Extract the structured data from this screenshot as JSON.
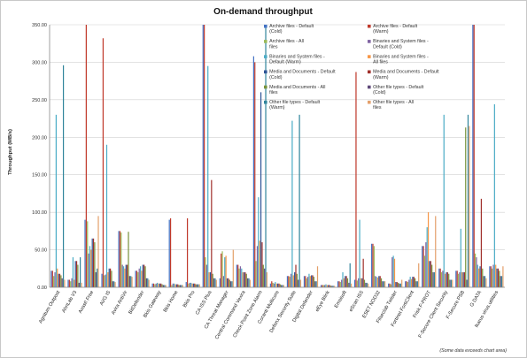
{
  "chart_data": {
    "type": "bar",
    "title": "On-demand throughput",
    "ylabel": "Throughput (MB/s)",
    "xlabel": "",
    "ylim": [
      0,
      350
    ],
    "yticks": [
      "0.00",
      "50.00",
      "100.00",
      "150.00",
      "200.00",
      "250.00",
      "300.00",
      "350.00"
    ],
    "ytick_values": [
      0,
      50,
      100,
      150,
      200,
      250,
      300,
      350
    ],
    "grid": true,
    "legend_placement": "top-right",
    "note": "(Some data exceeds chart area)",
    "categories": [
      "Agnitum Outpost",
      "AhnLab V3",
      "Avast! Free",
      "AVG IS",
      "Avira AntiVir",
      "BitDefender",
      "Bkis Gateway",
      "Bkis Home",
      "Bkis Pro",
      "CA ISS Plus",
      "CA Threat Manager",
      "Central Command Vexira",
      "Check Point Zone Alarm",
      "Coranti Multicore",
      "Defenx Security Suite",
      "Digital Defender",
      "eEye Blink",
      "Emsisoft",
      "eScan ISS",
      "ESET NOD32",
      "Filseclab Twister",
      "Fortinet FortiClient",
      "Frisk F-PROT",
      "F-Secure Client Security",
      "F-Secure PSB",
      "G DATA",
      "Ikarus virus.utilities"
    ],
    "series": [
      {
        "name": "Archive files - Default (Cold)",
        "color": "#4472c4",
        "values": [
          22,
          10,
          90,
          18,
          75,
          22,
          5,
          90,
          7,
          350,
          12,
          30,
          308,
          5,
          15,
          15,
          3,
          8,
          10,
          58,
          5,
          8,
          55,
          25,
          22,
          350,
          28
        ]
      },
      {
        "name": "Archive files - Default (Warm)",
        "color": "#c0392b",
        "values": [
          22,
          10,
          350,
          332,
          75,
          22,
          5,
          92,
          92,
          350,
          45,
          30,
          300,
          8,
          15,
          15,
          3,
          8,
          287,
          58,
          5,
          8,
          55,
          25,
          22,
          350,
          28
        ]
      },
      {
        "name": "Archive files - All files",
        "color": "#9bbb59",
        "values": [
          15,
          8,
          88,
          16,
          73,
          20,
          4,
          3,
          5,
          40,
          48,
          25,
          35,
          6,
          14,
          12,
          3,
          7,
          9,
          55,
          4,
          7,
          42,
          20,
          18,
          45,
          25
        ]
      },
      {
        "name": "Binaries and System files - Default (Cold)",
        "color": "#8064a2",
        "values": [
          20,
          12,
          45,
          17,
          30,
          25,
          5,
          5,
          6,
          30,
          15,
          28,
          55,
          5,
          18,
          14,
          3,
          10,
          12,
          15,
          40,
          10,
          60,
          22,
          20,
          40,
          30
        ]
      },
      {
        "name": "Binaries and System files - Default (Warm)",
        "color": "#4bacc6",
        "values": [
          230,
          40,
          55,
          190,
          28,
          28,
          6,
          5,
          6,
          295,
          40,
          25,
          120,
          7,
          222,
          18,
          4,
          20,
          90,
          14,
          42,
          14,
          80,
          230,
          78,
          30,
          244
        ]
      },
      {
        "name": "Binaries and System files - All files",
        "color": "#f79646",
        "values": [
          25,
          10,
          50,
          20,
          25,
          22,
          5,
          4,
          5,
          20,
          42,
          20,
          62,
          5,
          16,
          15,
          3,
          12,
          12,
          13,
          38,
          11,
          100,
          18,
          20,
          25,
          30
        ]
      },
      {
        "name": "Media and Documents - Default (Cold)",
        "color": "#2f5597",
        "values": [
          18,
          35,
          65,
          25,
          30,
          30,
          5,
          4,
          5,
          20,
          12,
          20,
          260,
          5,
          20,
          16,
          3,
          15,
          12,
          15,
          7,
          14,
          35,
          20,
          20,
          28,
          25
        ]
      },
      {
        "name": "Media and Documents - Default (Warm)",
        "color": "#a0302b",
        "values": [
          18,
          35,
          65,
          25,
          30,
          30,
          5,
          4,
          5,
          143,
          12,
          20,
          60,
          5,
          30,
          16,
          3,
          15,
          38,
          15,
          7,
          14,
          35,
          20,
          20,
          118,
          25
        ]
      },
      {
        "name": "Media and Documents - All files",
        "color": "#77933c",
        "values": [
          16,
          30,
          60,
          22,
          74,
          28,
          4,
          3,
          4,
          18,
          10,
          18,
          30,
          4,
          18,
          14,
          2,
          12,
          10,
          12,
          6,
          12,
          30,
          18,
          213,
          25,
          22
        ]
      },
      {
        "name": "Other file types - Default (Cold)",
        "color": "#5f497a",
        "values": [
          12,
          6,
          20,
          8,
          15,
          12,
          3,
          3,
          4,
          12,
          8,
          12,
          25,
          3,
          10,
          8,
          2,
          6,
          6,
          8,
          5,
          8,
          20,
          10,
          10,
          15,
          15
        ]
      },
      {
        "name": "Other file types - Default (Warm)",
        "color": "#31859c",
        "values": [
          296,
          40,
          25,
          8,
          15,
          12,
          3,
          3,
          4,
          12,
          8,
          12,
          350,
          3,
          230,
          8,
          2,
          32,
          6,
          8,
          5,
          8,
          20,
          10,
          230,
          15,
          15
        ]
      },
      {
        "name": "Other file types - All files",
        "color": "#e4a06b",
        "values": [
          10,
          6,
          95,
          7,
          14,
          10,
          3,
          3,
          4,
          10,
          50,
          10,
          20,
          3,
          10,
          28,
          2,
          5,
          5,
          8,
          10,
          32,
          95,
          10,
          215,
          12,
          28
        ]
      }
    ]
  }
}
